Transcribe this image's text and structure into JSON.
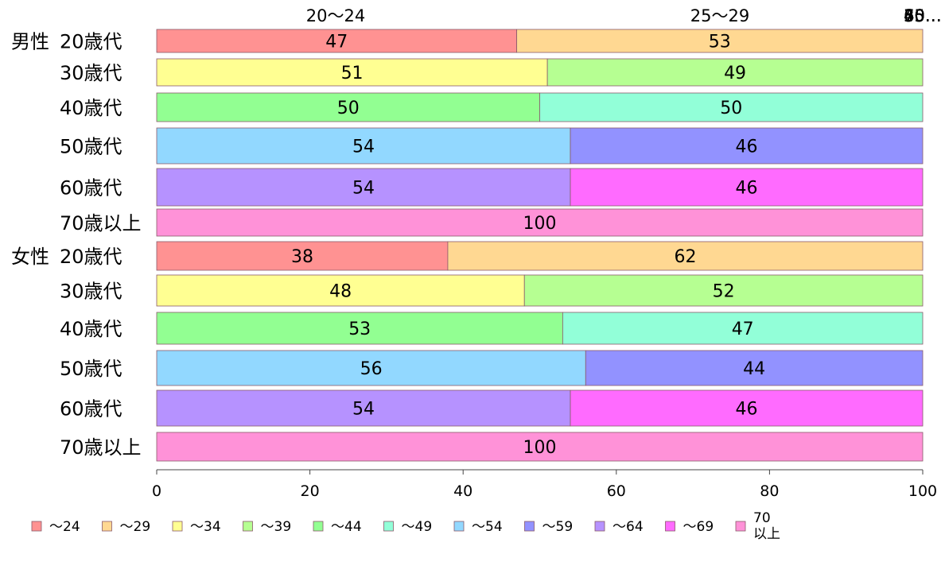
{
  "chart_data": {
    "type": "bar",
    "orientation": "horizontal",
    "stacked": true,
    "normalized_percent": true,
    "xlim": [
      0,
      100
    ],
    "x_ticks": [
      0,
      20,
      40,
      60,
      80,
      100
    ],
    "top_axis_labels": [
      "20〜24",
      "25〜29",
      "30…",
      "35…",
      "40…",
      "45…",
      "50…",
      "55…",
      "60…",
      "65…",
      "70…"
    ],
    "groups": [
      {
        "label": "男性",
        "start_index": 0
      },
      {
        "label": "女性",
        "start_index": 6
      }
    ],
    "categories": [
      "20歳代",
      "30歳代",
      "40歳代",
      "50歳代",
      "60歳代",
      "70歳以上",
      "20歳代",
      "30歳代",
      "40歳代",
      "50歳代",
      "60歳代",
      "70歳以上"
    ],
    "series": [
      {
        "name": "〜24",
        "color": "#FF9292",
        "values": [
          47,
          0,
          0,
          0,
          0,
          0,
          38,
          0,
          0,
          0,
          0,
          0
        ]
      },
      {
        "name": "〜29",
        "color": "#FFD892",
        "values": [
          53,
          0,
          0,
          0,
          0,
          0,
          62,
          0,
          0,
          0,
          0,
          0
        ]
      },
      {
        "name": "〜34",
        "color": "#FFFF92",
        "values": [
          0,
          51,
          0,
          0,
          0,
          0,
          0,
          48,
          0,
          0,
          0,
          0
        ]
      },
      {
        "name": "〜39",
        "color": "#B6FF92",
        "values": [
          0,
          49,
          0,
          0,
          0,
          0,
          0,
          52,
          0,
          0,
          0,
          0
        ]
      },
      {
        "name": "〜44",
        "color": "#92FF92",
        "values": [
          0,
          0,
          50,
          0,
          0,
          0,
          0,
          0,
          53,
          0,
          0,
          0
        ]
      },
      {
        "name": "〜49",
        "color": "#92FFD8",
        "values": [
          0,
          0,
          50,
          0,
          0,
          0,
          0,
          0,
          47,
          0,
          0,
          0
        ]
      },
      {
        "name": "〜54",
        "color": "#92D8FF",
        "values": [
          0,
          0,
          0,
          54,
          0,
          0,
          0,
          0,
          0,
          56,
          0,
          0
        ]
      },
      {
        "name": "〜59",
        "color": "#9292FF",
        "values": [
          0,
          0,
          0,
          46,
          0,
          0,
          0,
          0,
          0,
          44,
          0,
          0
        ]
      },
      {
        "name": "〜64",
        "color": "#B692FF",
        "values": [
          0,
          0,
          0,
          0,
          54,
          0,
          0,
          0,
          0,
          0,
          54,
          0
        ]
      },
      {
        "name": "〜69",
        "color": "#FF6BFF",
        "values": [
          0,
          0,
          0,
          0,
          46,
          0,
          0,
          0,
          0,
          0,
          46,
          0
        ]
      },
      {
        "name": "70\n以上",
        "color": "#FF92D8",
        "values": [
          0,
          0,
          0,
          0,
          0,
          100,
          0,
          0,
          0,
          0,
          0,
          100
        ]
      }
    ],
    "legend_position": "bottom",
    "grid": false
  }
}
